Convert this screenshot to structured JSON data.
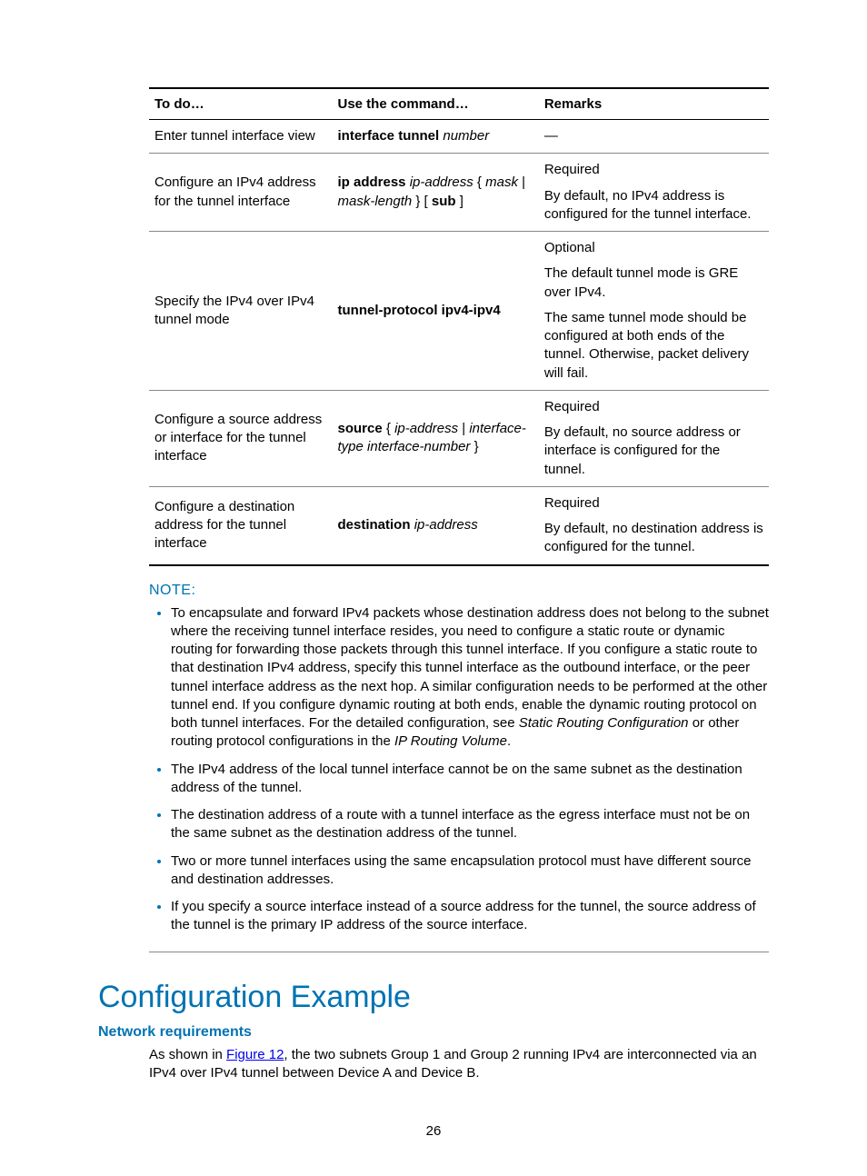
{
  "table": {
    "headers": [
      "To do…",
      "Use the command…",
      "Remarks"
    ],
    "rows": [
      {
        "todo": "Enter tunnel interface view",
        "cmd_html": "<span class='bold'>interface tunnel</span> <span class='italic'>number</span>",
        "remarks": [
          "—"
        ]
      },
      {
        "todo": "Configure an IPv4 address for the tunnel interface",
        "cmd_html": "<span class='bold'>ip address</span> <span class='italic'>ip-address</span> { <span class='italic'>mask</span> | <span class='italic'>mask-length</span> } [ <span class='bold'>sub</span> ]",
        "remarks": [
          "Required",
          "By default, no IPv4 address is configured for the tunnel interface."
        ]
      },
      {
        "todo": "Specify the IPv4 over IPv4 tunnel mode",
        "cmd_html": "<span class='bold'>tunnel-protocol ipv4-ipv4</span>",
        "remarks": [
          "Optional",
          "The default tunnel mode is GRE over IPv4.",
          "The same tunnel mode should be configured at both ends of the tunnel. Otherwise, packet delivery will fail."
        ]
      },
      {
        "todo": "Configure a source address or interface for the tunnel interface",
        "cmd_html": "<span class='bold'>source</span> { <span class='italic'>ip-address</span> | <span class='italic'>interface-type interface-number</span> }",
        "remarks": [
          "Required",
          "By default, no source address or interface is configured for the tunnel."
        ]
      },
      {
        "todo": "Configure a destination address for the tunnel interface",
        "cmd_html": "<span class='bold'>destination</span> <span class='italic'>ip-address</span>",
        "remarks": [
          "Required",
          "By default, no destination address is configured for the tunnel."
        ]
      }
    ]
  },
  "note": {
    "heading": "NOTE:",
    "items": [
      "To encapsulate and forward IPv4 packets whose destination address does not belong to the subnet where the receiving tunnel interface resides, you need to configure a static route or dynamic routing for forwarding those packets through this tunnel interface. If you configure a static route to that destination IPv4 address, specify this tunnel interface as the outbound interface, or the peer tunnel interface address as the next hop. A similar configuration needs to be performed at the other tunnel end. If you configure dynamic routing at both ends, enable the dynamic routing protocol on both tunnel interfaces. For the detailed configuration, see <span class='italic'>Static Routing Configuration</span> or other routing protocol configurations in the <span class='italic'>IP Routing Volume</span>.",
      "The IPv4 address of the local tunnel interface cannot be on the same subnet as the destination address of the tunnel.",
      "The destination address of a route with a tunnel interface as the egress interface must not be on the same subnet as the destination address of the tunnel.",
      "Two or more tunnel interfaces using the same encapsulation protocol must have different source and destination addresses.",
      "If you specify a source interface instead of a source address for the tunnel, the source address of the tunnel is the primary IP address of the source interface."
    ]
  },
  "section_title": "Configuration Example",
  "subsection_title": "Network requirements",
  "body_html": "As shown in <a class='figlink' href='#'>Figure 12</a>, the two subnets Group 1 and Group 2 running IPv4 are interconnected via an IPv4 over IPv4 tunnel between Device A and Device B.",
  "page_number": "26"
}
